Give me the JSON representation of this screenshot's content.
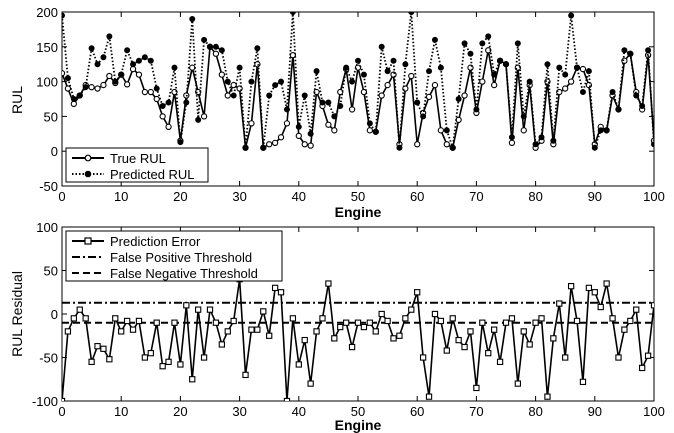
{
  "chart_data": [
    {
      "type": "line",
      "xlabel": "Engine",
      "ylabel": "RUL",
      "xlim": [
        0,
        100
      ],
      "ylim": [
        -50,
        200
      ],
      "x_ticks": [
        "0",
        "10",
        "20",
        "30",
        "40",
        "50",
        "60",
        "70",
        "80",
        "90",
        "100"
      ],
      "y_ticks": [
        "-50",
        "0",
        "50",
        "100",
        "150",
        "200"
      ],
      "legend_placement": "bottom-left",
      "grid": false,
      "series": [
        {
          "name": "True RUL",
          "style": "solid-open-circle",
          "values": [
            112,
            90,
            68,
            80,
            95,
            92,
            90,
            95,
            108,
            98,
            110,
            96,
            118,
            110,
            85,
            85,
            75,
            50,
            35,
            85,
            15,
            80,
            120,
            85,
            50,
            150,
            140,
            110,
            80,
            95,
            90,
            5,
            40,
            125,
            5,
            10,
            12,
            20,
            40,
            138,
            22,
            10,
            8,
            85,
            65,
            38,
            30,
            85,
            118,
            60,
            120,
            85,
            30,
            28,
            80,
            95,
            110,
            10,
            90,
            108,
            10,
            55,
            78,
            95,
            30,
            10,
            5,
            45,
            80,
            120,
            55,
            100,
            145,
            95,
            130,
            125,
            12,
            120,
            30,
            95,
            5,
            15,
            100,
            10,
            85,
            90,
            100,
            120,
            118,
            95,
            10,
            35,
            30,
            80,
            60,
            130,
            140,
            85,
            60,
            138,
            15
          ]
        },
        {
          "name": "Predicted RUL",
          "style": "dotted-filled-circle",
          "values": [
            195,
            105,
            75,
            80,
            92,
            148,
            125,
            135,
            165,
            100,
            110,
            145,
            125,
            130,
            135,
            130,
            90,
            65,
            70,
            120,
            13,
            70,
            190,
            45,
            160,
            150,
            150,
            145,
            100,
            80,
            120,
            5,
            100,
            148,
            5,
            80,
            95,
            100,
            60,
            200,
            35,
            80,
            25,
            115,
            70,
            70,
            50,
            65,
            120,
            100,
            130,
            110,
            40,
            28,
            150,
            115,
            130,
            5,
            125,
            200,
            70,
            50,
            115,
            160,
            120,
            30,
            5,
            75,
            155,
            140,
            60,
            155,
            165,
            110,
            130,
            125,
            20,
            155,
            50,
            100,
            10,
            20,
            125,
            15,
            120,
            110,
            195,
            120,
            85,
            115,
            5,
            30,
            30,
            85,
            60,
            145,
            140,
            80,
            65,
            145,
            10
          ]
        }
      ],
      "legend": [
        "True RUL",
        "Predicted RUL"
      ]
    },
    {
      "type": "line",
      "xlabel": "Engine",
      "ylabel": "RUL Residual",
      "xlim": [
        0,
        100
      ],
      "ylim": [
        -100,
        100
      ],
      "x_ticks": [
        "0",
        "10",
        "20",
        "30",
        "40",
        "50",
        "60",
        "70",
        "80",
        "90",
        "100"
      ],
      "y_ticks": [
        "-100",
        "-50",
        "0",
        "50",
        "100"
      ],
      "legend_placement": "top-left",
      "grid": false,
      "series": [
        {
          "name": "Prediction Error",
          "style": "solid-open-square",
          "values": [
            -100,
            -20,
            -5,
            5,
            -5,
            -55,
            -37,
            -40,
            -52,
            -5,
            -20,
            -8,
            -18,
            -8,
            -50,
            -45,
            -10,
            -60,
            -55,
            -10,
            -58,
            10,
            -75,
            5,
            -50,
            5,
            -10,
            -35,
            -20,
            -8,
            40,
            -70,
            -18,
            -18,
            3,
            -25,
            30,
            25,
            -100,
            -5,
            -58,
            -30,
            -80,
            -20,
            -5,
            35,
            -28,
            -15,
            -10,
            -38,
            -10,
            -15,
            -10,
            -20,
            0,
            -8,
            -28,
            -25,
            -5,
            5,
            25,
            -50,
            -95,
            0,
            -8,
            -42,
            -5,
            -30,
            -38,
            -20,
            -85,
            -10,
            -45,
            -18,
            -55,
            -10,
            -5,
            -80,
            -20,
            -35,
            -10,
            -5,
            -95,
            -28,
            12,
            -50,
            32,
            -8,
            -78,
            30,
            25,
            8,
            35,
            -5,
            -50,
            -18,
            -8,
            5,
            -62,
            -48,
            10
          ]
        }
      ],
      "thresholds": [
        {
          "name": "False Positive Threshold",
          "value": 13,
          "style": "dash-dot"
        },
        {
          "name": "False Negative Threshold",
          "value": -10,
          "style": "dashed"
        }
      ],
      "legend": [
        "Prediction Error",
        "False Positive Threshold",
        "False Negative Threshold"
      ]
    }
  ]
}
